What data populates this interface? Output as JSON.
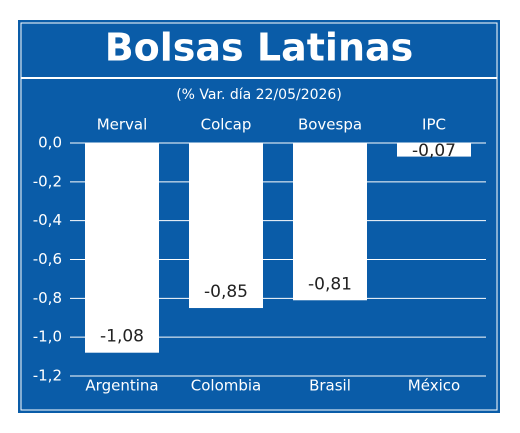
{
  "chart_data": {
    "type": "bar",
    "title": "Bolsas Latinas",
    "subtitle": "(% Var. día 22/05/2026)",
    "index_names": [
      "Merval",
      "Colcap",
      "Bovespa",
      "IPC"
    ],
    "categories": [
      "Argentina",
      "Colombia",
      "Brasil",
      "México"
    ],
    "values": [
      -1.08,
      -0.85,
      -0.81,
      -0.07
    ],
    "value_labels": [
      "-1,08",
      "-0,85",
      "-0,81",
      "-0,07"
    ],
    "color": "#ffffff",
    "ylim": [
      0,
      -1.2
    ],
    "yticks": [
      {
        "value": 0,
        "label": "0,0"
      },
      {
        "value": -0.2,
        "label": "-0,2"
      },
      {
        "value": -0.4,
        "label": "-0,4"
      },
      {
        "value": -0.6,
        "label": "-0,6"
      },
      {
        "value": -0.8,
        "label": "-0,8"
      },
      {
        "value": -1.0,
        "label": "-1,0"
      },
      {
        "value": -1.2,
        "label": "-1,2"
      }
    ],
    "grid": true
  }
}
